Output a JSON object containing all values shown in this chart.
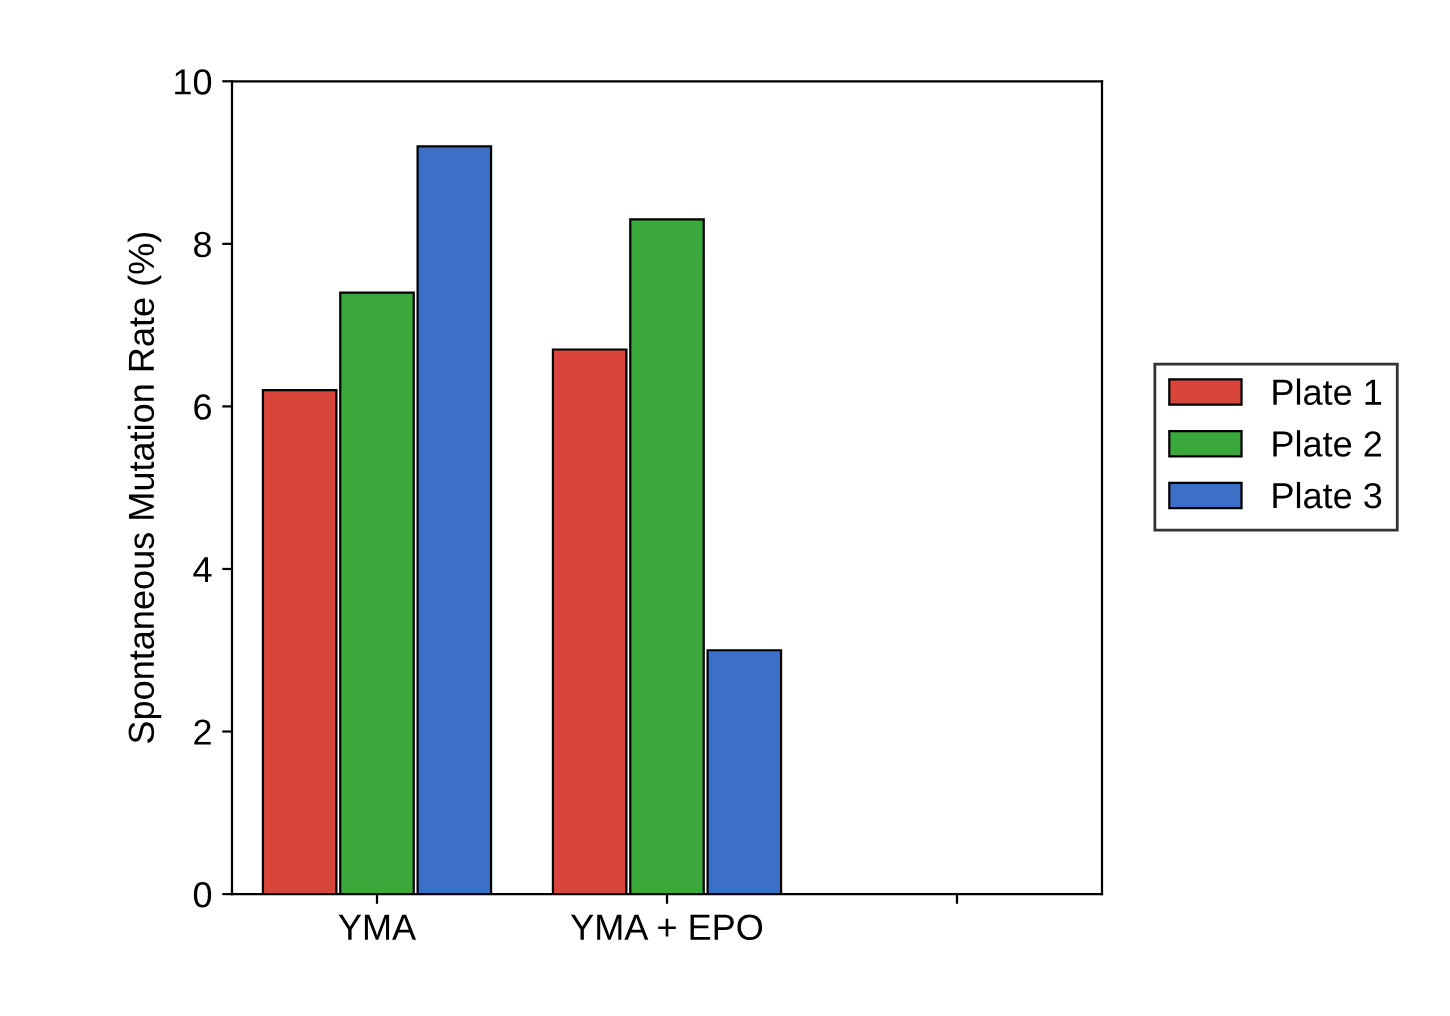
{
  "chart_data": {
    "type": "bar",
    "ylabel": "Spontaneous Mutation Rate (%)",
    "categories": [
      "YMA",
      "YMA + EPO",
      null
    ],
    "series": [
      {
        "name": "Plate 1",
        "color": "#d9453b",
        "values": [
          6.2,
          6.7,
          null
        ]
      },
      {
        "name": "Plate 2",
        "color": "#3ba83b",
        "values": [
          7.4,
          8.3,
          null
        ]
      },
      {
        "name": "Plate 3",
        "color": "#3c6fc6",
        "values": [
          9.2,
          3.0,
          null
        ]
      }
    ],
    "ylim": [
      0,
      10
    ],
    "yticks": [
      0,
      2,
      4,
      6,
      8,
      10
    ],
    "grid": false,
    "legend": "right"
  }
}
